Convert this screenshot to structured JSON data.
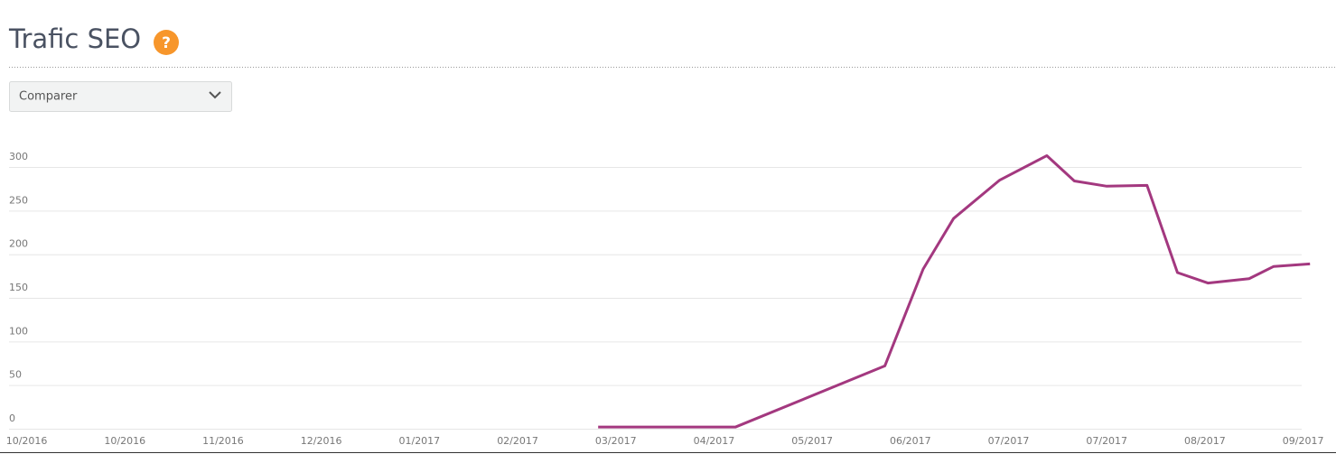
{
  "header": {
    "title": "Trafic SEO",
    "help": "?"
  },
  "dropdown": {
    "label": "Comparer"
  },
  "chart_data": {
    "type": "line",
    "x": [
      5.82,
      7.22,
      8.74,
      9.13,
      9.44,
      9.91,
      10.39,
      10.67,
      11.0,
      11.41,
      11.72,
      12.03,
      12.45,
      12.7,
      13.07
    ],
    "series": [
      {
        "color": "#a3387f",
        "values": [
          2,
          2,
          72,
          183,
          241,
          285,
          313,
          284,
          278,
          279,
          179,
          167,
          172,
          186,
          189
        ]
      }
    ],
    "xlim": [
      -0.18,
      13.16
    ],
    "xticks": [
      {
        "value": 0,
        "label": "10/2016"
      },
      {
        "value": 1,
        "label": "10/2016"
      },
      {
        "value": 2,
        "label": "11/2016"
      },
      {
        "value": 3,
        "label": "12/2016"
      },
      {
        "value": 4,
        "label": "01/2017"
      },
      {
        "value": 5,
        "label": "02/2017"
      },
      {
        "value": 6,
        "label": "03/2017"
      },
      {
        "value": 7,
        "label": "04/2017"
      },
      {
        "value": 8,
        "label": "05/2017"
      },
      {
        "value": 9,
        "label": "06/2017"
      },
      {
        "value": 10,
        "label": "07/2017"
      },
      {
        "value": 11,
        "label": "07/2017"
      },
      {
        "value": 12,
        "label": "08/2017"
      },
      {
        "value": 13,
        "label": "09/2017"
      }
    ],
    "ylim": [
      0,
      320
    ],
    "yticks": [
      0,
      50,
      100,
      150,
      200,
      250,
      300
    ],
    "grid": true
  }
}
